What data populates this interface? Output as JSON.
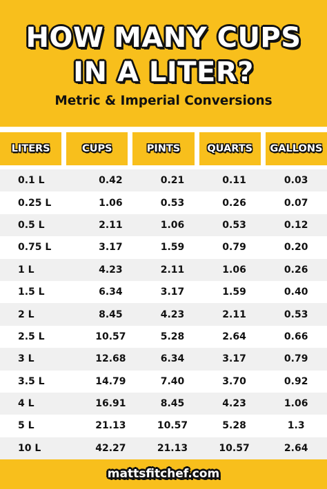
{
  "header": {
    "title_lines": [
      "HOW MANY CUPS",
      "IN A LITER?"
    ],
    "subtitle": "Metric & Imperial Conversions"
  },
  "table": {
    "columns": [
      "LITERS",
      "CUPS",
      "PINTS",
      "QUARTS",
      "GALLONS"
    ],
    "rows": [
      [
        "0.1 L",
        "0.42",
        "0.21",
        "0.11",
        "0.03"
      ],
      [
        "0.25 L",
        "1.06",
        "0.53",
        "0.26",
        "0.07"
      ],
      [
        "0.5 L",
        "2.11",
        "1.06",
        "0.53",
        "0.12"
      ],
      [
        "0.75 L",
        "3.17",
        "1.59",
        "0.79",
        "0.20"
      ],
      [
        "1 L",
        "4.23",
        "2.11",
        "1.06",
        "0.26"
      ],
      [
        "1.5 L",
        "6.34",
        "3.17",
        "1.59",
        "0.40"
      ],
      [
        "2 L",
        "8.45",
        "4.23",
        "2.11",
        "0.53"
      ],
      [
        "2.5 L",
        "10.57",
        "5.28",
        "2.64",
        "0.66"
      ],
      [
        "3 L",
        "12.68",
        "6.34",
        "3.17",
        "0.79"
      ],
      [
        "3.5 L",
        "14.79",
        "7.40",
        "3.70",
        "0.92"
      ],
      [
        "4 L",
        "16.91",
        "8.45",
        "4.23",
        "1.06"
      ],
      [
        "5 L",
        "21.13",
        "10.57",
        "5.28",
        "1.3"
      ],
      [
        "10 L",
        "42.27",
        "21.13",
        "10.57",
        "2.64"
      ]
    ]
  },
  "footer": {
    "site": "mattsfitchef.com"
  }
}
